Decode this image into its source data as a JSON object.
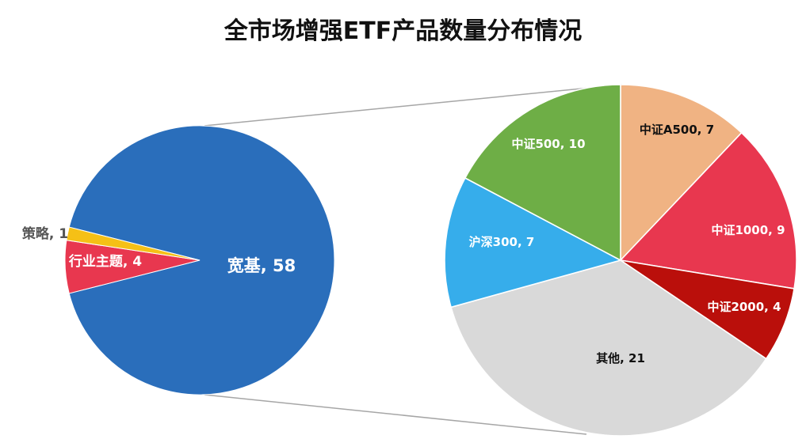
{
  "chart_data": [
    {
      "type": "pie",
      "title": "全市场增强ETF产品数量分布情况",
      "role": "primary pie",
      "categories": [
        "宽基",
        "行业主题",
        "策略"
      ],
      "values": [
        58,
        4,
        1
      ],
      "colors": [
        "#2A6EBB",
        "#E8374F",
        "#F5C016"
      ],
      "labels": [
        "宽基, 58",
        "行业主题, 4",
        "策略, 1"
      ],
      "label_colors": [
        "#ffffff",
        "#ffffff",
        "#555555"
      ]
    },
    {
      "type": "pie",
      "role": "breakout of 宽基",
      "categories": [
        "中证A500",
        "中证1000",
        "中证2000",
        "其他",
        "沪深300",
        "中证500"
      ],
      "values": [
        7,
        9,
        4,
        21,
        7,
        10
      ],
      "colors": [
        "#F0B383",
        "#E8374F",
        "#BA0F0B",
        "#D9D9D9",
        "#36ADEB",
        "#6EAE46"
      ],
      "labels": [
        "中证A500, 7",
        "中证1000, 9",
        "中证2000, 4",
        "其他, 21",
        "沪深300, 7",
        "中证500, 10"
      ],
      "label_colors": [
        "#111111",
        "#ffffff",
        "#ffffff",
        "#111111",
        "#ffffff",
        "#ffffff"
      ]
    }
  ],
  "title": "全市场增强ETF产品数量分布情况"
}
